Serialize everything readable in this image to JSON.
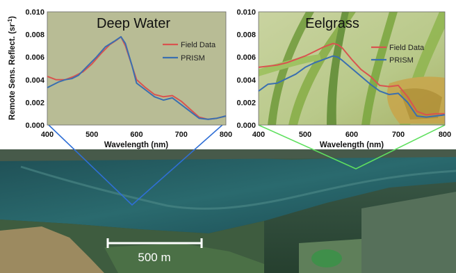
{
  "chart_data": [
    {
      "type": "line",
      "title": "Deep Water",
      "xlabel": "Wavelength (nm)",
      "ylabel": "Remote Sens. Reflect. (sr",
      "ylabel_sup": "-1",
      "ylabel_end": ")",
      "xlim": [
        400,
        800
      ],
      "ylim": [
        0,
        0.01
      ],
      "x_ticks": [
        "400",
        "500",
        "600",
        "700",
        "800"
      ],
      "y_ticks": [
        "0.000",
        "0.002",
        "0.004",
        "0.006",
        "0.008",
        "0.010"
      ],
      "legend_position": "top-right",
      "series": [
        {
          "name": "Field Data",
          "color": "#d9534f",
          "x": [
            400,
            420,
            440,
            460,
            480,
            500,
            520,
            540,
            555,
            565,
            575,
            590,
            600,
            620,
            640,
            660,
            680,
            700,
            720,
            740,
            760,
            780,
            800
          ],
          "values": [
            0.0043,
            0.004,
            0.004,
            0.0043,
            0.0047,
            0.0054,
            0.0063,
            0.0071,
            0.0075,
            0.0078,
            0.007,
            0.0052,
            0.004,
            0.0033,
            0.0027,
            0.0025,
            0.0026,
            0.0021,
            0.0014,
            0.0007,
            0.0005,
            0.0006,
            0.0008
          ]
        },
        {
          "name": "PRISM",
          "color": "#3a6fb0",
          "x": [
            400,
            410,
            425,
            440,
            455,
            470,
            490,
            510,
            530,
            550,
            565,
            575,
            590,
            600,
            620,
            640,
            660,
            680,
            700,
            720,
            740,
            760,
            780,
            800
          ],
          "values": [
            0.0033,
            0.0035,
            0.0038,
            0.004,
            0.0041,
            0.0044,
            0.0052,
            0.006,
            0.0069,
            0.0074,
            0.0078,
            0.0072,
            0.0052,
            0.0037,
            0.0031,
            0.0025,
            0.0022,
            0.0024,
            0.0018,
            0.0012,
            0.0006,
            0.0005,
            0.0006,
            0.0008
          ]
        }
      ]
    },
    {
      "type": "line",
      "title": "Eelgrass",
      "xlabel": "Wavelength (nm)",
      "ylabel": "",
      "xlim": [
        400,
        800
      ],
      "ylim": [
        0,
        0.01
      ],
      "x_ticks": [
        "400",
        "500",
        "600",
        "700",
        "800"
      ],
      "y_ticks": [
        "0.000",
        "0.002",
        "0.004",
        "0.006",
        "0.008",
        "0.010"
      ],
      "legend_position": "top-right",
      "series": [
        {
          "name": "Field Data",
          "color": "#d9534f",
          "x": [
            400,
            420,
            440,
            460,
            480,
            500,
            520,
            540,
            560,
            570,
            580,
            600,
            620,
            640,
            660,
            680,
            700,
            720,
            740,
            760,
            780,
            800
          ],
          "values": [
            0.0051,
            0.0052,
            0.0053,
            0.0055,
            0.0058,
            0.0061,
            0.0065,
            0.0069,
            0.0072,
            0.0071,
            0.0068,
            0.0058,
            0.0049,
            0.0043,
            0.0035,
            0.0034,
            0.0035,
            0.0025,
            0.0012,
            0.0009,
            0.001,
            0.001
          ]
        },
        {
          "name": "PRISM",
          "color": "#3a6fb0",
          "x": [
            400,
            420,
            440,
            460,
            480,
            500,
            520,
            540,
            560,
            570,
            580,
            600,
            620,
            640,
            660,
            680,
            700,
            720,
            740,
            760,
            780,
            800
          ],
          "values": [
            0.003,
            0.0036,
            0.0037,
            0.0041,
            0.0045,
            0.0051,
            0.0055,
            0.0058,
            0.0061,
            0.006,
            0.0057,
            0.005,
            0.0043,
            0.0036,
            0.003,
            0.0027,
            0.0028,
            0.002,
            0.0008,
            0.0007,
            0.0008,
            0.0009
          ]
        }
      ]
    }
  ],
  "scale_bar": {
    "label": "500 m"
  },
  "colors": {
    "field": "#d9534f",
    "prism": "#3a6fb0",
    "deep_water_connector": "#2f6fd6",
    "eelgrass_connector": "#5fe05f"
  }
}
